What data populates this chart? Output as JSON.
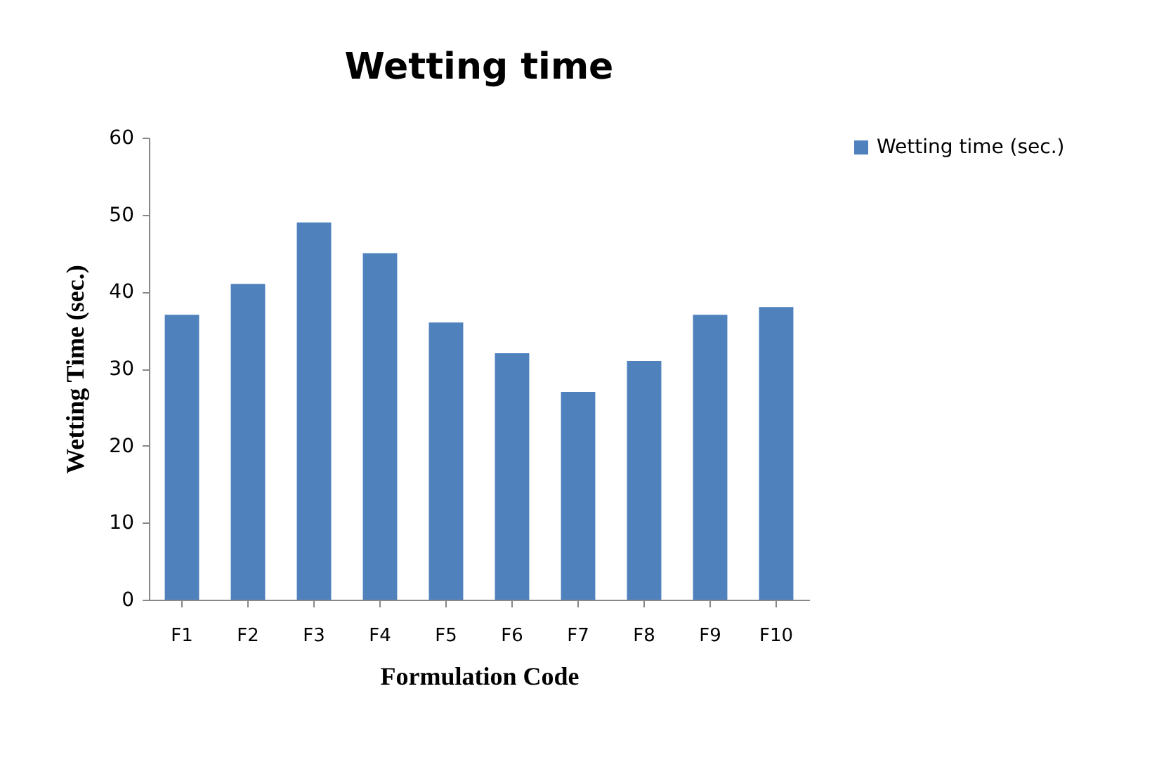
{
  "chart_data": {
    "type": "bar",
    "title": "Wetting time",
    "xlabel": "Formulation Code",
    "ylabel": "Wetting Time (sec.)",
    "categories": [
      "F1",
      "F2",
      "F3",
      "F4",
      "F5",
      "F6",
      "F7",
      "F8",
      "F9",
      "F10"
    ],
    "series": [
      {
        "name": "Wetting time  (sec.)",
        "color": "#4f81bd",
        "values": [
          37,
          41,
          49,
          45,
          36,
          32,
          27,
          31,
          37,
          38
        ]
      }
    ],
    "ylim": [
      0,
      60
    ],
    "yticks": [
      0,
      10,
      20,
      30,
      40,
      50,
      60
    ],
    "grid": false,
    "legend": "right"
  }
}
